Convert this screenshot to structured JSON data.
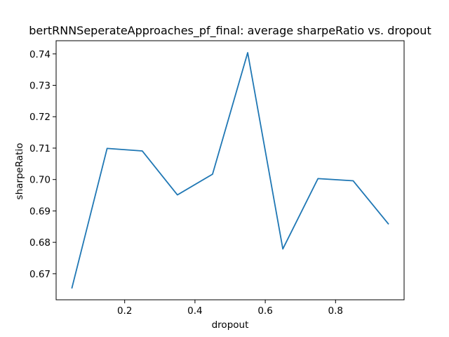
{
  "chart_data": {
    "type": "line",
    "title": "bertRNNSeperateApproaches_pf_final: average sharpeRatio vs. dropout",
    "xlabel": "dropout",
    "ylabel": "sharpeRatio",
    "xlim": [
      0.005,
      0.995
    ],
    "ylim": [
      0.6617,
      0.7442
    ],
    "xticks": [
      0.2,
      0.4,
      0.6,
      0.8
    ],
    "xtick_labels": [
      "0.2",
      "0.4",
      "0.6",
      "0.8"
    ],
    "yticks": [
      0.67,
      0.68,
      0.69,
      0.7,
      0.71,
      0.72,
      0.73,
      0.74
    ],
    "ytick_labels": [
      "0.67",
      "0.68",
      "0.69",
      "0.70",
      "0.71",
      "0.72",
      "0.73",
      "0.74"
    ],
    "grid": false,
    "series": [
      {
        "color": "#1f77b4",
        "x": [
          0.05,
          0.15,
          0.25,
          0.35,
          0.45,
          0.55,
          0.65,
          0.75,
          0.85,
          0.95
        ],
        "y": [
          0.6655,
          0.7099,
          0.7091,
          0.6951,
          0.7017,
          0.7404,
          0.6779,
          0.7003,
          0.6996,
          0.6859
        ]
      }
    ]
  }
}
